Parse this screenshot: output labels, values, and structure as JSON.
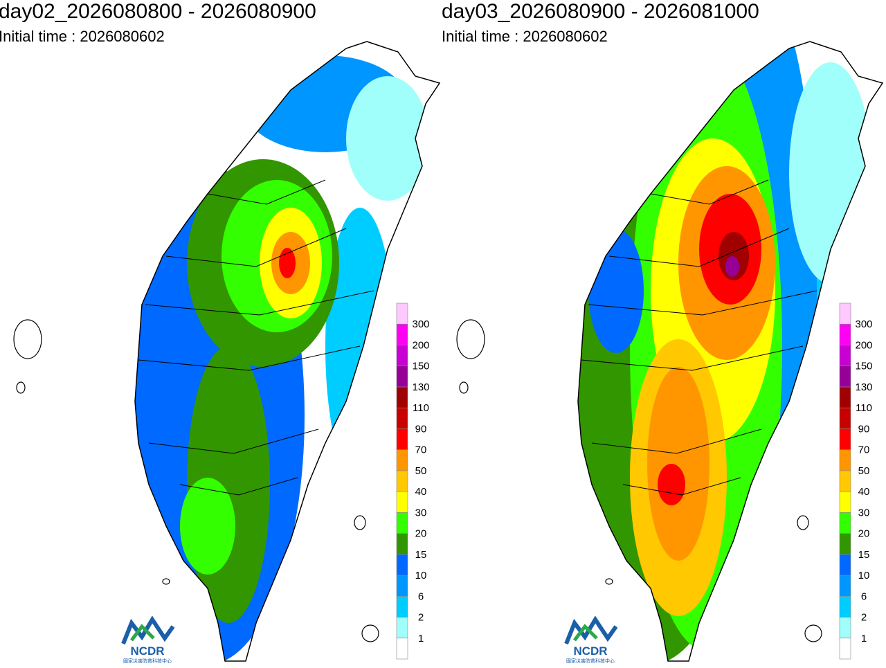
{
  "panels": [
    {
      "title": "day02_2026080800 - 2026080900",
      "initial_time": "Initial time : 2026080602"
    },
    {
      "title": "day03_2026080900 - 2026081000",
      "initial_time": "Initial time : 2026080602"
    }
  ],
  "colorbar": {
    "levels": [
      1,
      2,
      6,
      10,
      15,
      20,
      30,
      40,
      50,
      70,
      90,
      110,
      130,
      150,
      200,
      300
    ],
    "colors": [
      "#ffffff",
      "#a0fffa",
      "#00cdff",
      "#0096ff",
      "#0069ff",
      "#329600",
      "#33ff00",
      "#ffff00",
      "#ffc800",
      "#ff9600",
      "#ff0000",
      "#c80000",
      "#a00000",
      "#960096",
      "#c800d2",
      "#ff00f5",
      "#ffc8ff"
    ]
  },
  "logo": {
    "text": "NCDR",
    "subtitle": "國家災害防救科技中心"
  }
}
